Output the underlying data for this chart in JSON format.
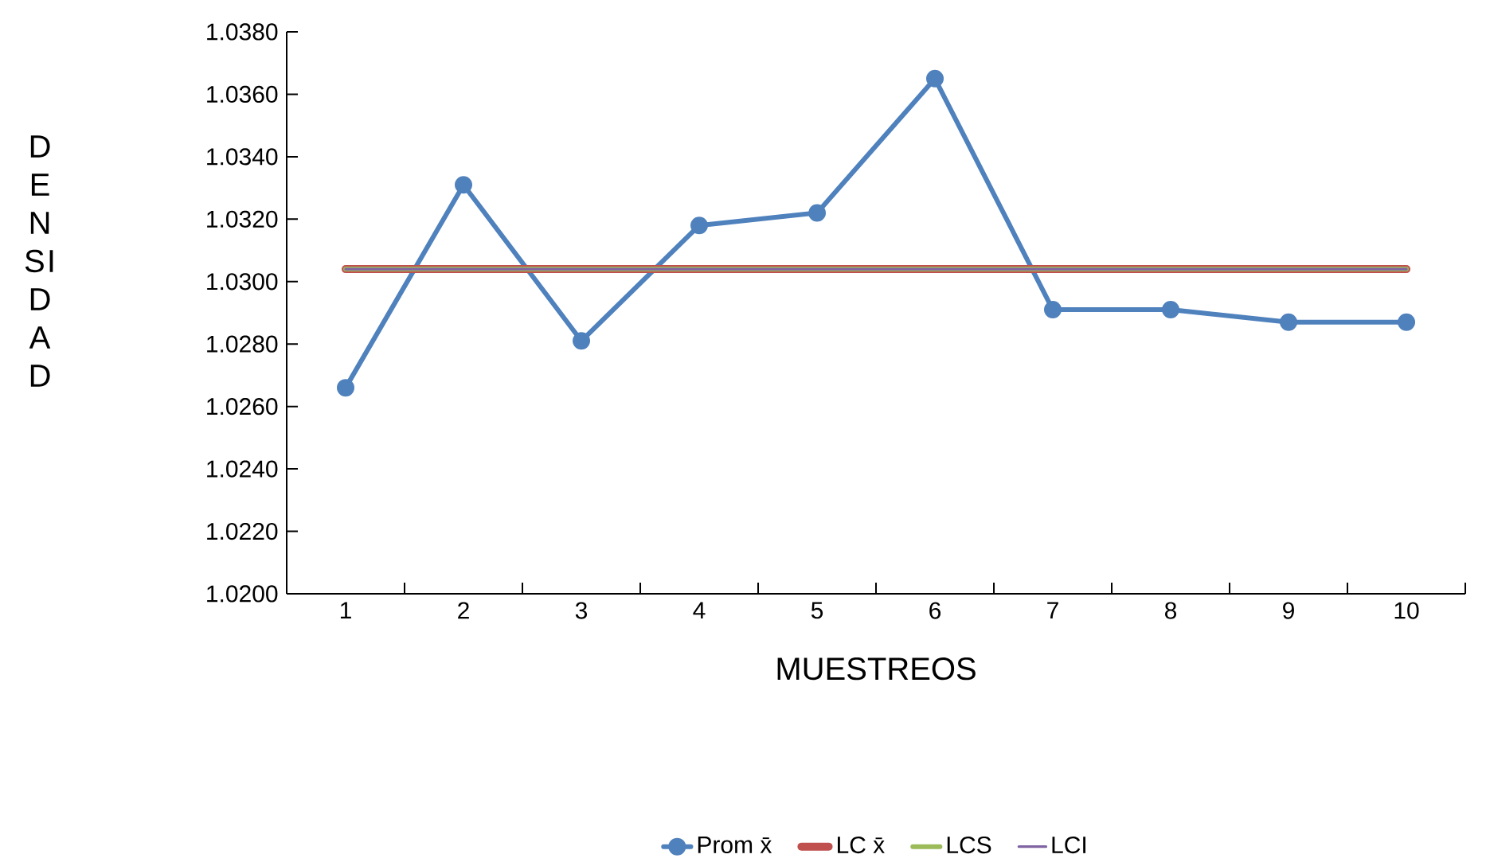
{
  "chart_data": {
    "type": "line",
    "xlabel": "MUESTREOS",
    "ylabel": "DENSIDAD",
    "categories": [
      "1",
      "2",
      "3",
      "4",
      "5",
      "6",
      "7",
      "8",
      "9",
      "10"
    ],
    "series": [
      {
        "name": "Prom x̄",
        "color": "#4f81bd",
        "marker": "circle",
        "values": [
          1.0266,
          1.0331,
          1.0281,
          1.0318,
          1.0322,
          1.0365,
          1.0291,
          1.0291,
          1.0287,
          1.0287
        ]
      },
      {
        "name": "LC x̄",
        "color": "#c0504d",
        "marker": "none",
        "values": [
          1.0304,
          1.0304,
          1.0304,
          1.0304,
          1.0304,
          1.0304,
          1.0304,
          1.0304,
          1.0304,
          1.0304
        ]
      },
      {
        "name": "LCS",
        "color": "#9bbb59",
        "marker": "none",
        "values": [
          1.0304,
          1.0304,
          1.0304,
          1.0304,
          1.0304,
          1.0304,
          1.0304,
          1.0304,
          1.0304,
          1.0304
        ]
      },
      {
        "name": "LCI",
        "color": "#8064a2",
        "marker": "none",
        "values": [
          1.0304,
          1.0304,
          1.0304,
          1.0304,
          1.0304,
          1.0304,
          1.0304,
          1.0304,
          1.0304,
          1.0304
        ]
      }
    ],
    "ylim": [
      1.02,
      1.038
    ],
    "yticks": [
      {
        "value": 1.02,
        "label": "1.0200"
      },
      {
        "value": 1.022,
        "label": "1.0220"
      },
      {
        "value": 1.024,
        "label": "1.0240"
      },
      {
        "value": 1.026,
        "label": "1.0260"
      },
      {
        "value": 1.028,
        "label": "1.0280"
      },
      {
        "value": 1.03,
        "label": "1.0300"
      },
      {
        "value": 1.032,
        "label": "1.0320"
      },
      {
        "value": 1.034,
        "label": "1.0340"
      },
      {
        "value": 1.036,
        "label": "1.0360"
      },
      {
        "value": 1.038,
        "label": "1.0380"
      }
    ],
    "grid": false,
    "legend": "bottom"
  }
}
